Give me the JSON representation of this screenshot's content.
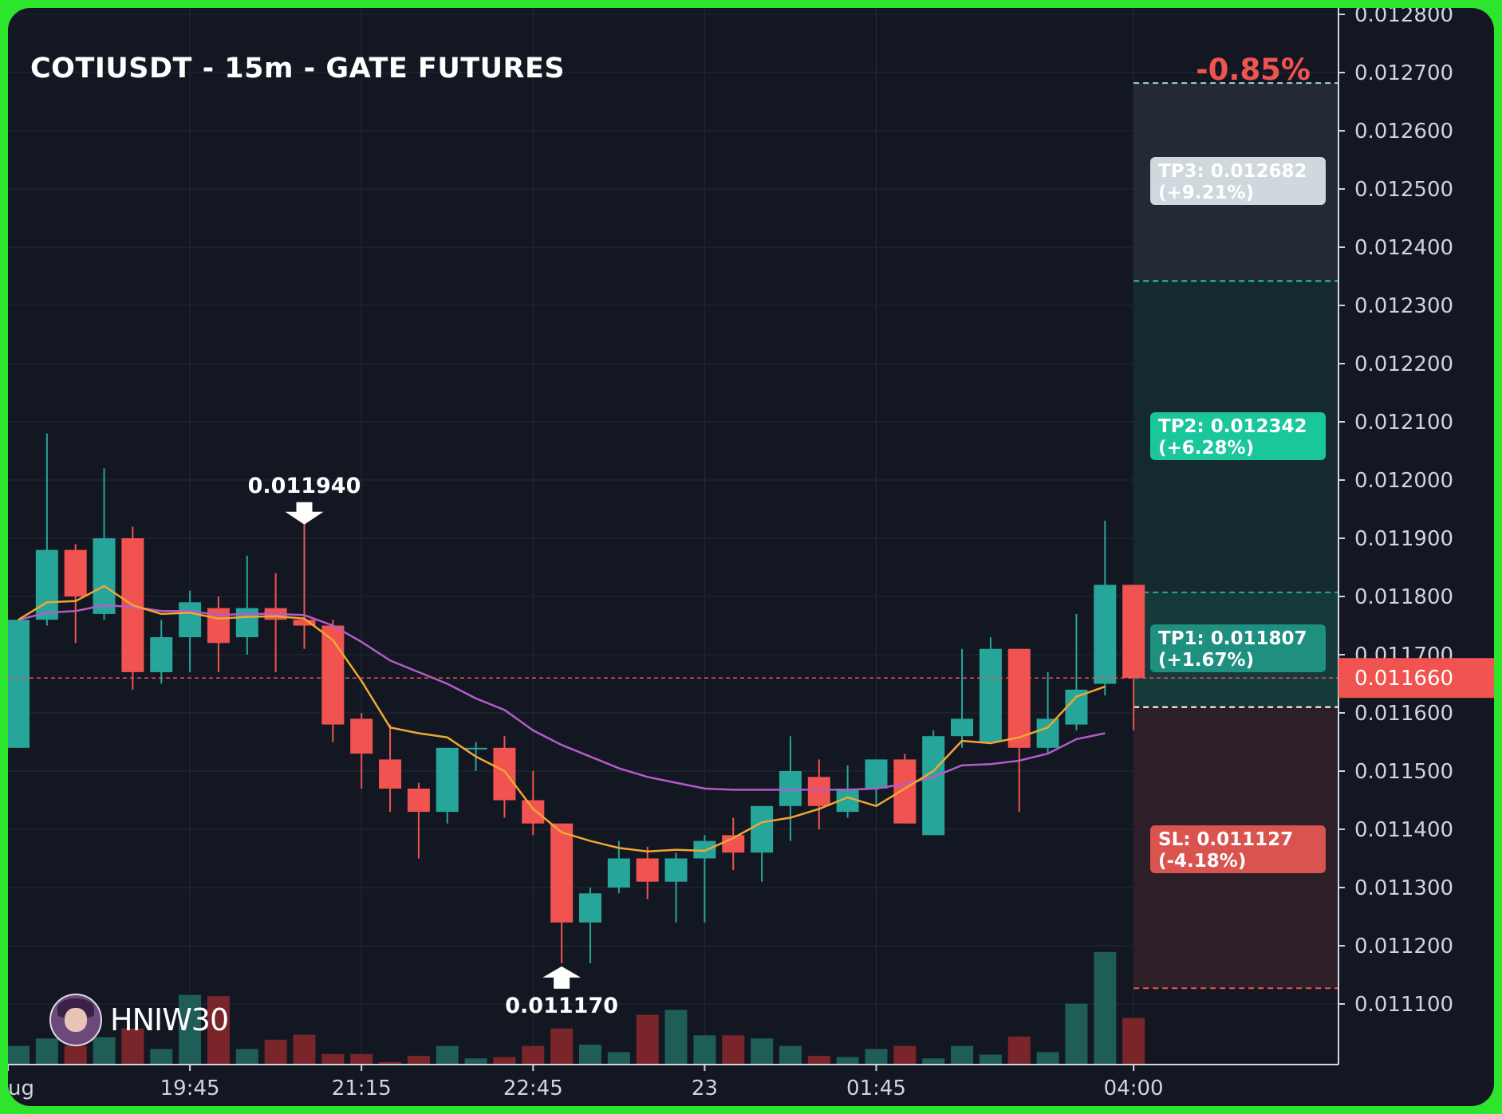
{
  "header": {
    "title": "COTIUSDT - 15m - GATE FUTURES",
    "change": "-0.85%"
  },
  "brand": {
    "name": "HNIW30"
  },
  "colors": {
    "background": "#131722",
    "bull": "#26a69a",
    "bear": "#f05350",
    "ema_fast": "#f0a830",
    "ema_slow": "#b45cc8",
    "frame": "#2ee52e"
  },
  "chart_data": {
    "type": "candlestick",
    "symbol": "COTIUSDT",
    "interval": "15m",
    "exchange": "GATE FUTURES",
    "ylim": [
      0.011,
      0.0128
    ],
    "y_ticks": [
      "0.012800",
      "0.012700",
      "0.012600",
      "0.012500",
      "0.012400",
      "0.012300",
      "0.012200",
      "0.012100",
      "0.012000",
      "0.011900",
      "0.011800",
      "0.011700",
      "0.011600",
      "0.011500",
      "0.011400",
      "0.011300",
      "0.011200",
      "0.011100"
    ],
    "x_labels": [
      {
        "label": "ug",
        "index": -0.6
      },
      {
        "label": "19:45",
        "index": 6
      },
      {
        "label": "21:15",
        "index": 12
      },
      {
        "label": "22:45",
        "index": 18
      },
      {
        "label": "23",
        "index": 24
      },
      {
        "label": "01:45",
        "index": 30
      },
      {
        "label": "04:00",
        "index": 39
      }
    ],
    "candles": [
      {
        "o": 0.01154,
        "h": 0.01176,
        "l": 0.01154,
        "c": 0.01176
      },
      {
        "o": 0.01176,
        "h": 0.01208,
        "l": 0.01175,
        "c": 0.01188
      },
      {
        "o": 0.01188,
        "h": 0.01189,
        "l": 0.01172,
        "c": 0.0118
      },
      {
        "o": 0.01177,
        "h": 0.01202,
        "l": 0.01176,
        "c": 0.0119
      },
      {
        "o": 0.0119,
        "h": 0.01192,
        "l": 0.01164,
        "c": 0.01167
      },
      {
        "o": 0.01167,
        "h": 0.01176,
        "l": 0.01165,
        "c": 0.01173
      },
      {
        "o": 0.01173,
        "h": 0.01181,
        "l": 0.01167,
        "c": 0.01179
      },
      {
        "o": 0.01178,
        "h": 0.0118,
        "l": 0.01167,
        "c": 0.01172
      },
      {
        "o": 0.01173,
        "h": 0.01187,
        "l": 0.0117,
        "c": 0.01178
      },
      {
        "o": 0.01178,
        "h": 0.01184,
        "l": 0.01167,
        "c": 0.01176
      },
      {
        "o": 0.01176,
        "h": 0.01194,
        "l": 0.01171,
        "c": 0.01175
      },
      {
        "o": 0.01175,
        "h": 0.01176,
        "l": 0.01155,
        "c": 0.01158
      },
      {
        "o": 0.01159,
        "h": 0.0116,
        "l": 0.01147,
        "c": 0.01153
      },
      {
        "o": 0.01152,
        "h": 0.01158,
        "l": 0.01143,
        "c": 0.01147
      },
      {
        "o": 0.01147,
        "h": 0.01148,
        "l": 0.01135,
        "c": 0.01143
      },
      {
        "o": 0.01143,
        "h": 0.01154,
        "l": 0.01141,
        "c": 0.01154
      },
      {
        "o": 0.01154,
        "h": 0.01155,
        "l": 0.0115,
        "c": 0.01154
      },
      {
        "o": 0.01154,
        "h": 0.01156,
        "l": 0.01142,
        "c": 0.01145
      },
      {
        "o": 0.01145,
        "h": 0.0115,
        "l": 0.01139,
        "c": 0.01141
      },
      {
        "o": 0.01141,
        "h": 0.01141,
        "l": 0.01117,
        "c": 0.01124
      },
      {
        "o": 0.01124,
        "h": 0.0113,
        "l": 0.01117,
        "c": 0.01129
      },
      {
        "o": 0.0113,
        "h": 0.01138,
        "l": 0.01129,
        "c": 0.01135
      },
      {
        "o": 0.01135,
        "h": 0.01137,
        "l": 0.01128,
        "c": 0.01131
      },
      {
        "o": 0.01131,
        "h": 0.01136,
        "l": 0.01124,
        "c": 0.01135
      },
      {
        "o": 0.01135,
        "h": 0.01139,
        "l": 0.01124,
        "c": 0.01138
      },
      {
        "o": 0.01139,
        "h": 0.01142,
        "l": 0.01133,
        "c": 0.01136
      },
      {
        "o": 0.01136,
        "h": 0.01144,
        "l": 0.01131,
        "c": 0.01144
      },
      {
        "o": 0.01144,
        "h": 0.01156,
        "l": 0.01138,
        "c": 0.0115
      },
      {
        "o": 0.01149,
        "h": 0.01152,
        "l": 0.0114,
        "c": 0.01144
      },
      {
        "o": 0.01143,
        "h": 0.01151,
        "l": 0.01142,
        "c": 0.01147
      },
      {
        "o": 0.01147,
        "h": 0.01152,
        "l": 0.01144,
        "c": 0.01152
      },
      {
        "o": 0.01152,
        "h": 0.01153,
        "l": 0.01141,
        "c": 0.01141
      },
      {
        "o": 0.01139,
        "h": 0.01157,
        "l": 0.01139,
        "c": 0.01156
      },
      {
        "o": 0.01156,
        "h": 0.01171,
        "l": 0.01154,
        "c": 0.01159
      },
      {
        "o": 0.01155,
        "h": 0.01173,
        "l": 0.01155,
        "c": 0.01171
      },
      {
        "o": 0.01171,
        "h": 0.01171,
        "l": 0.01143,
        "c": 0.01154
      },
      {
        "o": 0.01154,
        "h": 0.01167,
        "l": 0.01153,
        "c": 0.01159
      },
      {
        "o": 0.01158,
        "h": 0.01177,
        "l": 0.01157,
        "c": 0.01164
      },
      {
        "o": 0.01165,
        "h": 0.01193,
        "l": 0.01163,
        "c": 0.01182
      },
      {
        "o": 0.01182,
        "h": 0.01182,
        "l": 0.01157,
        "c": 0.01166
      }
    ],
    "volumes": [
      0.3,
      0.42,
      0.3,
      0.44,
      0.58,
      0.25,
      1.12,
      1.1,
      0.25,
      0.4,
      0.48,
      0.17,
      0.17,
      0.04,
      0.14,
      0.3,
      0.1,
      0.12,
      0.3,
      0.58,
      0.32,
      0.2,
      0.8,
      0.88,
      0.47,
      0.47,
      0.42,
      0.3,
      0.14,
      0.12,
      0.25,
      0.3,
      0.1,
      0.3,
      0.16,
      0.45,
      0.2,
      0.98,
      1.81,
      0.75
    ],
    "ema_fast": [
      0.01176,
      0.01179,
      0.011792,
      0.011818,
      0.011785,
      0.01177,
      0.011772,
      0.011762,
      0.011765,
      0.011766,
      0.011762,
      0.011725,
      0.011655,
      0.011575,
      0.011565,
      0.011558,
      0.011525,
      0.0115,
      0.011435,
      0.011395,
      0.01138,
      0.011368,
      0.011362,
      0.011365,
      0.011363,
      0.011385,
      0.011412,
      0.01142,
      0.011435,
      0.011455,
      0.01144,
      0.01147,
      0.0115,
      0.011552,
      0.011548,
      0.011558,
      0.011575,
      0.011628,
      0.011645
    ],
    "ema_slow": [
      0.01176,
      0.011772,
      0.011775,
      0.011785,
      0.011782,
      0.011775,
      0.011775,
      0.011768,
      0.01177,
      0.01177,
      0.011768,
      0.01175,
      0.011722,
      0.01169,
      0.01167,
      0.01165,
      0.011625,
      0.011605,
      0.01157,
      0.011545,
      0.011525,
      0.011505,
      0.01149,
      0.01148,
      0.01147,
      0.011468,
      0.011468,
      0.011468,
      0.011468,
      0.011468,
      0.01147,
      0.011478,
      0.01149,
      0.01151,
      0.011512,
      0.011518,
      0.01153,
      0.011555,
      0.011565
    ],
    "current_price": "0.011660",
    "markers": [
      {
        "label": "0.011940",
        "type": "high",
        "index": 10
      },
      {
        "label": "0.011170",
        "type": "low",
        "index": 19
      }
    ],
    "targets": [
      {
        "label": "TP3: 0.012682",
        "pct": "(+9.21%)",
        "price": 0.012682,
        "color": "#cfd8dc"
      },
      {
        "label": "TP2: 0.012342",
        "pct": "(+6.28%)",
        "price": 0.012342,
        "color": "#19c79b"
      },
      {
        "label": "TP1: 0.011807",
        "pct": "(+1.67%)",
        "price": 0.011807,
        "color": "#1f8f80"
      },
      {
        "label": "SL: 0.011127",
        "pct": "(-4.18%)",
        "price": 0.011127,
        "color": "#d9534f"
      }
    ],
    "entry_price": 0.01161
  }
}
